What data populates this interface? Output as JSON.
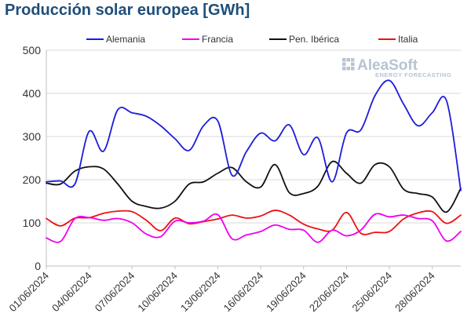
{
  "chart_data": {
    "type": "line",
    "title": "Producción solar europea [GWh]",
    "xlabel": "",
    "ylabel": "",
    "ylim": [
      0,
      500
    ],
    "yticks": [
      0,
      100,
      200,
      300,
      400,
      500
    ],
    "x": [
      "01/06/2024",
      "02/06/2024",
      "03/06/2024",
      "04/06/2024",
      "05/06/2024",
      "06/06/2024",
      "07/06/2024",
      "08/06/2024",
      "09/06/2024",
      "10/06/2024",
      "11/06/2024",
      "12/06/2024",
      "13/06/2024",
      "14/06/2024",
      "15/06/2024",
      "16/06/2024",
      "17/06/2024",
      "18/06/2024",
      "19/06/2024",
      "20/06/2024",
      "21/06/2024",
      "22/06/2024",
      "23/06/2024",
      "24/06/2024",
      "25/06/2024",
      "26/06/2024",
      "27/06/2024",
      "28/06/2024",
      "29/06/2024",
      "30/06/2024"
    ],
    "x_tick_labels": [
      "01/06/2024",
      "04/06/2024",
      "07/06/2024",
      "10/06/2024",
      "13/06/2024",
      "16/06/2024",
      "19/06/2024",
      "22/06/2024",
      "25/06/2024",
      "28/06/2024"
    ],
    "legend_position": "top",
    "grid": true,
    "series": [
      {
        "name": "Alemania",
        "color": "#1c1cdb",
        "values": [
          195,
          197,
          190,
          312,
          266,
          362,
          355,
          347,
          325,
          295,
          268,
          325,
          336,
          210,
          265,
          308,
          290,
          327,
          258,
          297,
          195,
          308,
          315,
          395,
          430,
          375,
          325,
          355,
          383,
          175
        ]
      },
      {
        "name": "Francia",
        "color": "#ee00ee",
        "values": [
          65,
          57,
          110,
          112,
          106,
          110,
          100,
          74,
          68,
          104,
          100,
          104,
          119,
          63,
          72,
          80,
          95,
          85,
          83,
          55,
          83,
          70,
          83,
          120,
          114,
          118,
          110,
          105,
          58,
          80
        ]
      },
      {
        "name": "Pen. Ibérica",
        "color": "#111111",
        "values": [
          192,
          190,
          220,
          230,
          225,
          190,
          150,
          138,
          134,
          150,
          190,
          195,
          215,
          228,
          195,
          183,
          235,
          170,
          168,
          185,
          242,
          215,
          192,
          235,
          230,
          178,
          168,
          160,
          125,
          180
        ]
      },
      {
        "name": "Italia",
        "color": "#ee1111",
        "values": [
          110,
          93,
          111,
          112,
          122,
          127,
          126,
          106,
          82,
          111,
          98,
          103,
          109,
          118,
          111,
          116,
          129,
          118,
          97,
          86,
          83,
          124,
          76,
          78,
          80,
          109,
          123,
          126,
          99,
          118
        ]
      }
    ]
  },
  "logo": {
    "main": "AleaSoft",
    "sub": "ENERGY FORECASTING"
  }
}
